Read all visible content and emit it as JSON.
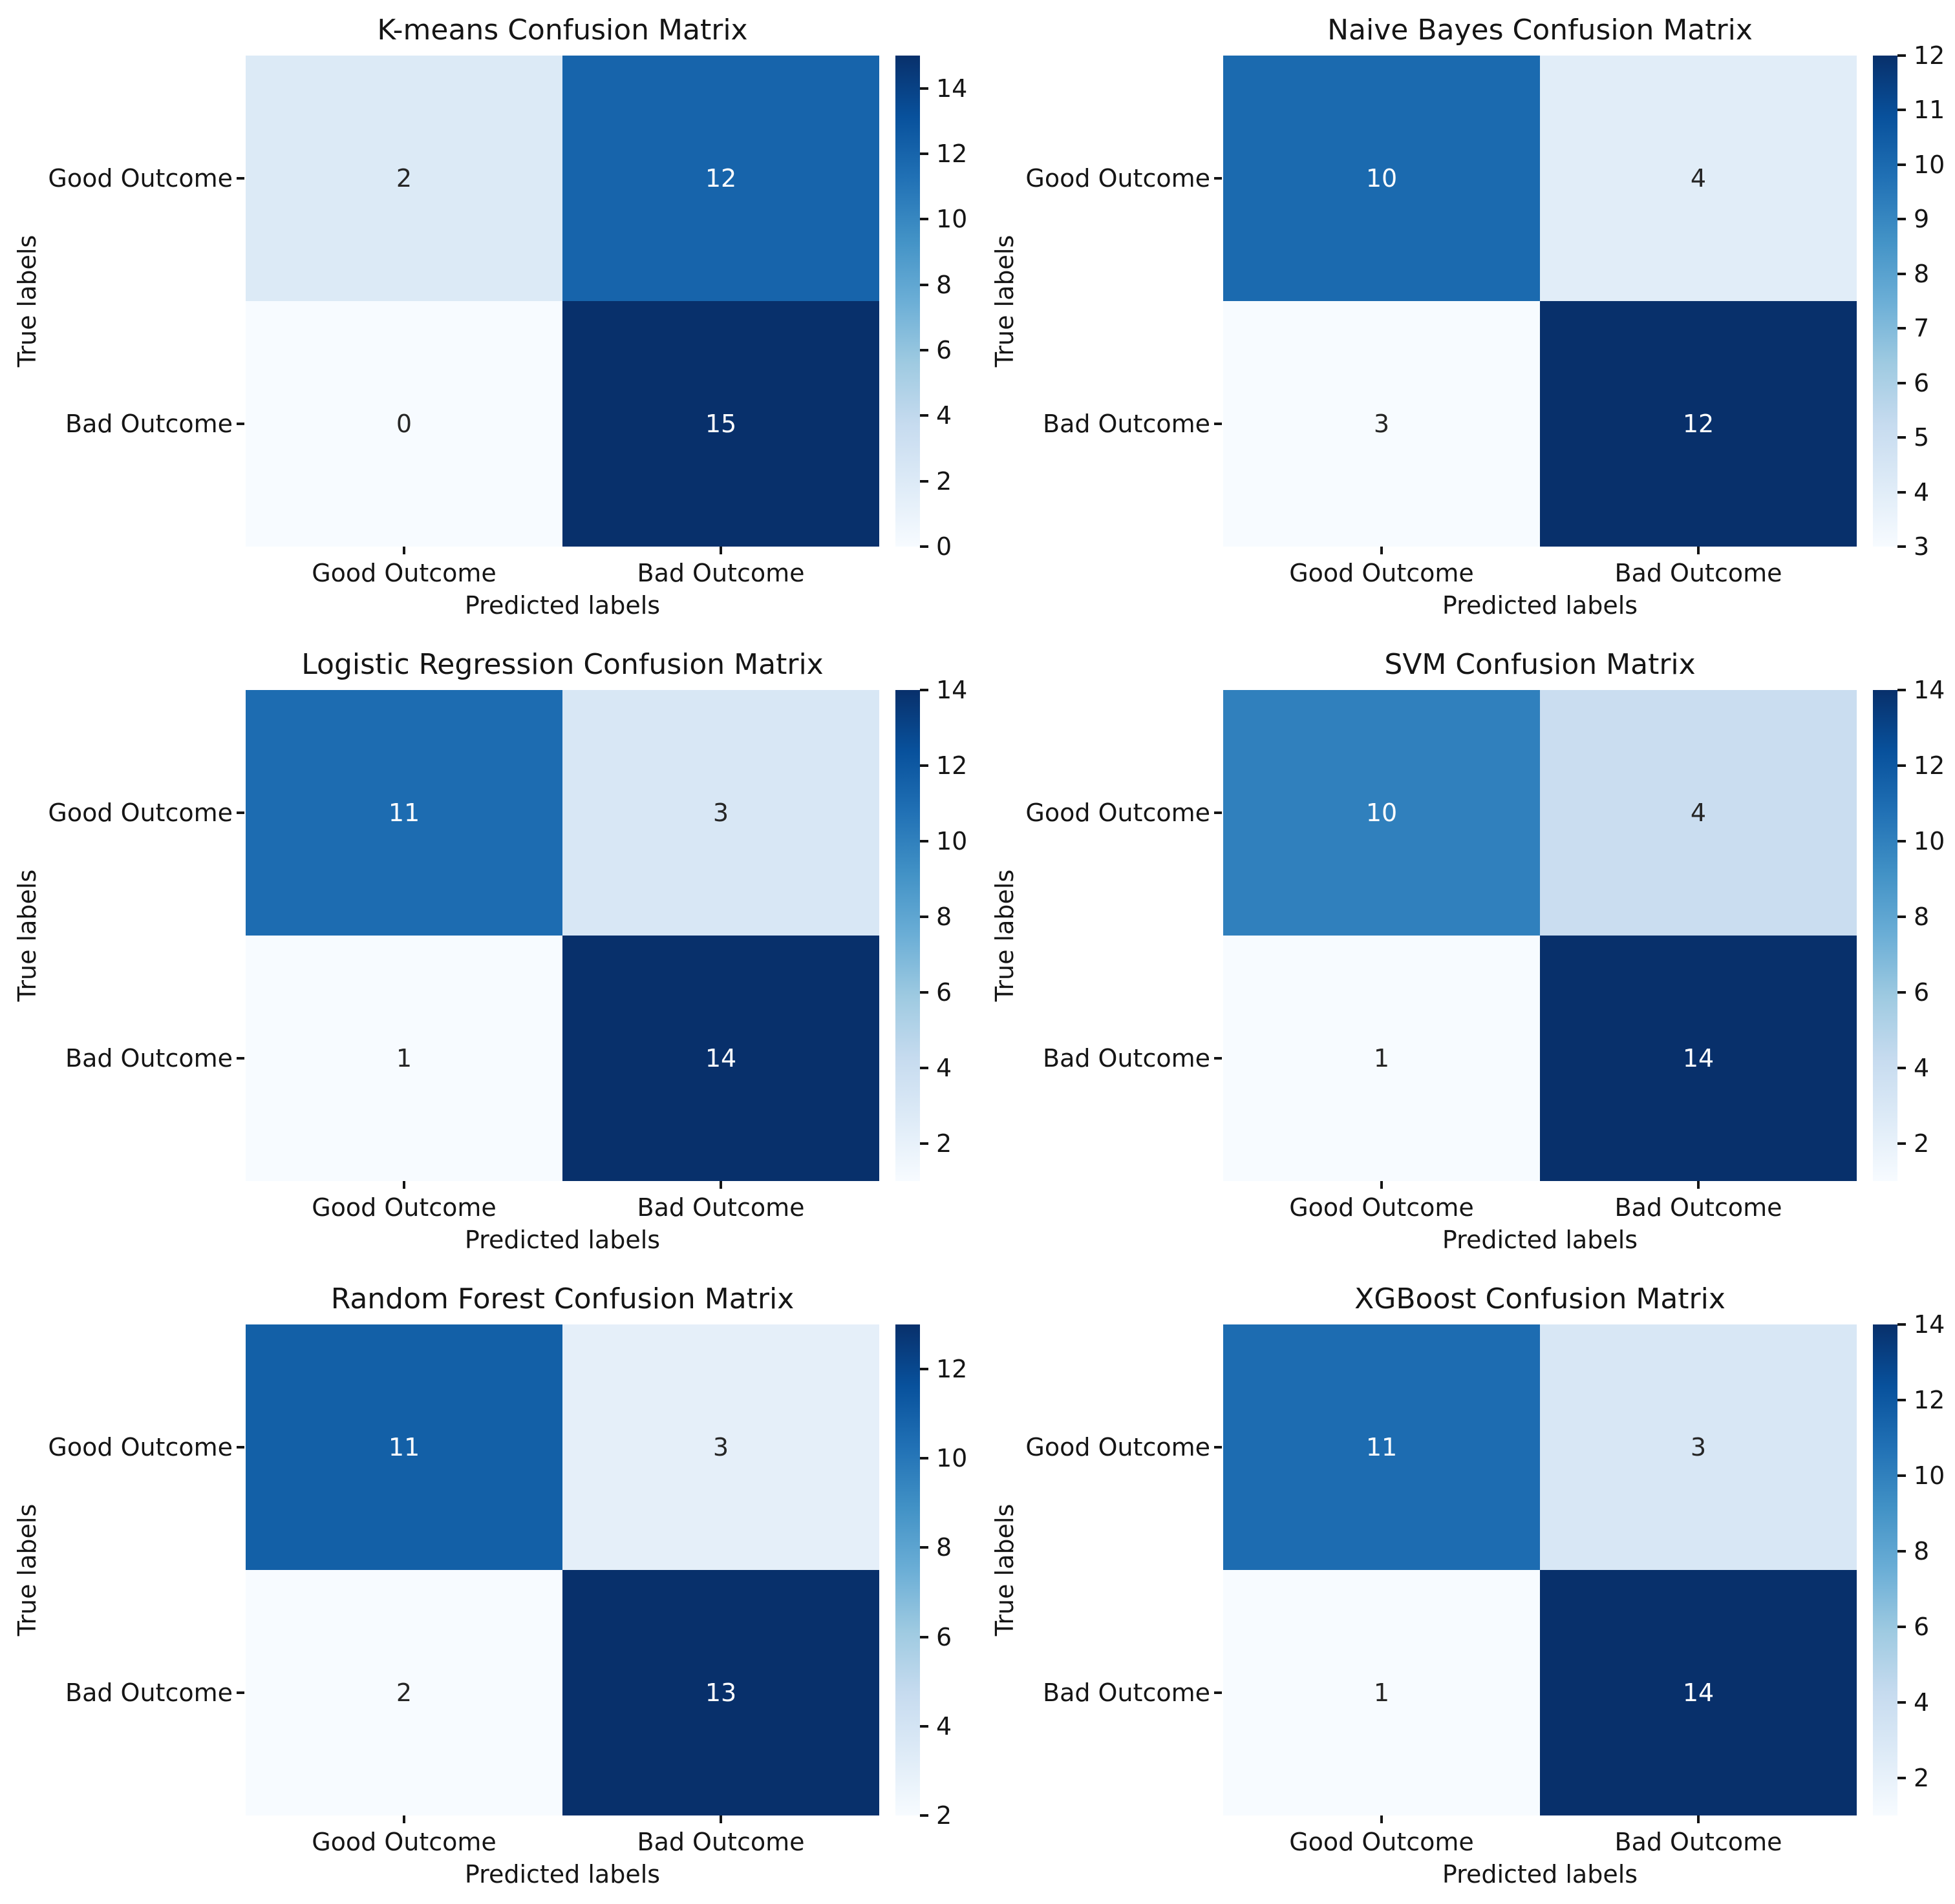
{
  "figure": {
    "background": "#ffffff",
    "grid": "3 rows x 2 columns",
    "text_color": "#151515",
    "annot_dark_text": "#262626",
    "annot_light_text": "#ffffff"
  },
  "chart_data": [
    {
      "type": "heatmap",
      "title": "K-means Confusion Matrix",
      "xlabel": "Predicted labels",
      "ylabel": "True labels",
      "x_ticklabels": [
        "Good Outcome",
        "Bad Outcome"
      ],
      "y_ticklabels": [
        "Good Outcome",
        "Bad Outcome"
      ],
      "matrix": [
        [
          2,
          12
        ],
        [
          0,
          15
        ]
      ],
      "vmin": 0,
      "vmax": 15,
      "colorbar_ticks": [
        0,
        2,
        4,
        6,
        8,
        10,
        12,
        14
      ],
      "colormap": "Blues",
      "legend_position": "right-colorbar"
    },
    {
      "type": "heatmap",
      "title": "Naive Bayes Confusion Matrix",
      "xlabel": "Predicted labels",
      "ylabel": "True labels",
      "x_ticklabels": [
        "Good Outcome",
        "Bad Outcome"
      ],
      "y_ticklabels": [
        "Good Outcome",
        "Bad Outcome"
      ],
      "matrix": [
        [
          10,
          4
        ],
        [
          3,
          12
        ]
      ],
      "vmin": 3,
      "vmax": 12,
      "colorbar_ticks": [
        3,
        4,
        5,
        6,
        7,
        8,
        9,
        10,
        11,
        12
      ],
      "colormap": "Blues",
      "legend_position": "right-colorbar"
    },
    {
      "type": "heatmap",
      "title": "Logistic Regression Confusion Matrix",
      "xlabel": "Predicted labels",
      "ylabel": "True labels",
      "x_ticklabels": [
        "Good Outcome",
        "Bad Outcome"
      ],
      "y_ticklabels": [
        "Good Outcome",
        "Bad Outcome"
      ],
      "matrix": [
        [
          11,
          3
        ],
        [
          1,
          14
        ]
      ],
      "vmin": 1,
      "vmax": 14,
      "colorbar_ticks": [
        2,
        4,
        6,
        8,
        10,
        12,
        14
      ],
      "colormap": "Blues",
      "legend_position": "right-colorbar"
    },
    {
      "type": "heatmap",
      "title": "SVM Confusion Matrix",
      "xlabel": "Predicted labels",
      "ylabel": "True labels",
      "x_ticklabels": [
        "Good Outcome",
        "Bad Outcome"
      ],
      "y_ticklabels": [
        "Good Outcome",
        "Bad Outcome"
      ],
      "matrix": [
        [
          10,
          4
        ],
        [
          1,
          14
        ]
      ],
      "vmin": 1,
      "vmax": 14,
      "colorbar_ticks": [
        2,
        4,
        6,
        8,
        10,
        12,
        14
      ],
      "colormap": "Blues",
      "legend_position": "right-colorbar"
    },
    {
      "type": "heatmap",
      "title": "Random Forest Confusion Matrix",
      "xlabel": "Predicted labels",
      "ylabel": "True labels",
      "x_ticklabels": [
        "Good Outcome",
        "Bad Outcome"
      ],
      "y_ticklabels": [
        "Good Outcome",
        "Bad Outcome"
      ],
      "matrix": [
        [
          11,
          3
        ],
        [
          2,
          13
        ]
      ],
      "vmin": 2,
      "vmax": 13,
      "colorbar_ticks": [
        2,
        4,
        6,
        8,
        10,
        12
      ],
      "colormap": "Blues",
      "legend_position": "right-colorbar"
    },
    {
      "type": "heatmap",
      "title": "XGBoost Confusion Matrix",
      "xlabel": "Predicted labels",
      "ylabel": "True labels",
      "x_ticklabels": [
        "Good Outcome",
        "Bad Outcome"
      ],
      "y_ticklabels": [
        "Good Outcome",
        "Bad Outcome"
      ],
      "matrix": [
        [
          11,
          3
        ],
        [
          1,
          14
        ]
      ],
      "vmin": 1,
      "vmax": 14,
      "colorbar_ticks": [
        2,
        4,
        6,
        8,
        10,
        12,
        14
      ],
      "colormap": "Blues",
      "legend_position": "right-colorbar"
    }
  ]
}
